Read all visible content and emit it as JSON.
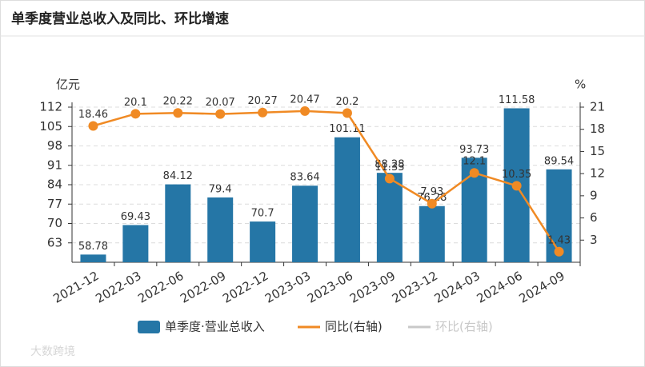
{
  "chart_data": {
    "type": "bar",
    "title": "单季度营业总收入及同比、环比增速",
    "y_label": "亿元",
    "y2_label": "%",
    "categories": [
      "2021-12",
      "2022-03",
      "2022-06",
      "2022-09",
      "2022-12",
      "2023-03",
      "2023-06",
      "2023-09",
      "2023-12",
      "2024-03",
      "2024-06",
      "2024-09"
    ],
    "series": [
      {
        "name": "单季度·营业总收入",
        "type": "bar",
        "color": "#2576a6",
        "values": [
          58.78,
          69.43,
          84.12,
          79.4,
          70.7,
          83.64,
          101.11,
          88.28,
          76.28,
          93.73,
          111.58,
          89.54
        ]
      },
      {
        "name": "同比(右轴)",
        "type": "line",
        "axis": "y2",
        "color": "#f08a24",
        "values": [
          18.46,
          20.1,
          20.22,
          20.07,
          20.27,
          20.47,
          20.2,
          11.33,
          7.93,
          12.1,
          10.35,
          1.43
        ]
      },
      {
        "name": "环比(右轴)",
        "type": "line",
        "axis": "y2",
        "color": "#c8c8c8",
        "values": [
          null,
          null,
          null,
          null,
          null,
          null,
          null,
          null,
          null,
          null,
          null,
          null
        ]
      }
    ],
    "ylim": [
      56,
      112
    ],
    "yticks": [
      63,
      70,
      77,
      84,
      91,
      98,
      105,
      112
    ],
    "y2lim": [
      0,
      21
    ],
    "y2ticks": [
      3,
      6,
      9,
      12,
      15,
      18,
      21
    ],
    "grid": true
  },
  "watermark": "大数跨境"
}
